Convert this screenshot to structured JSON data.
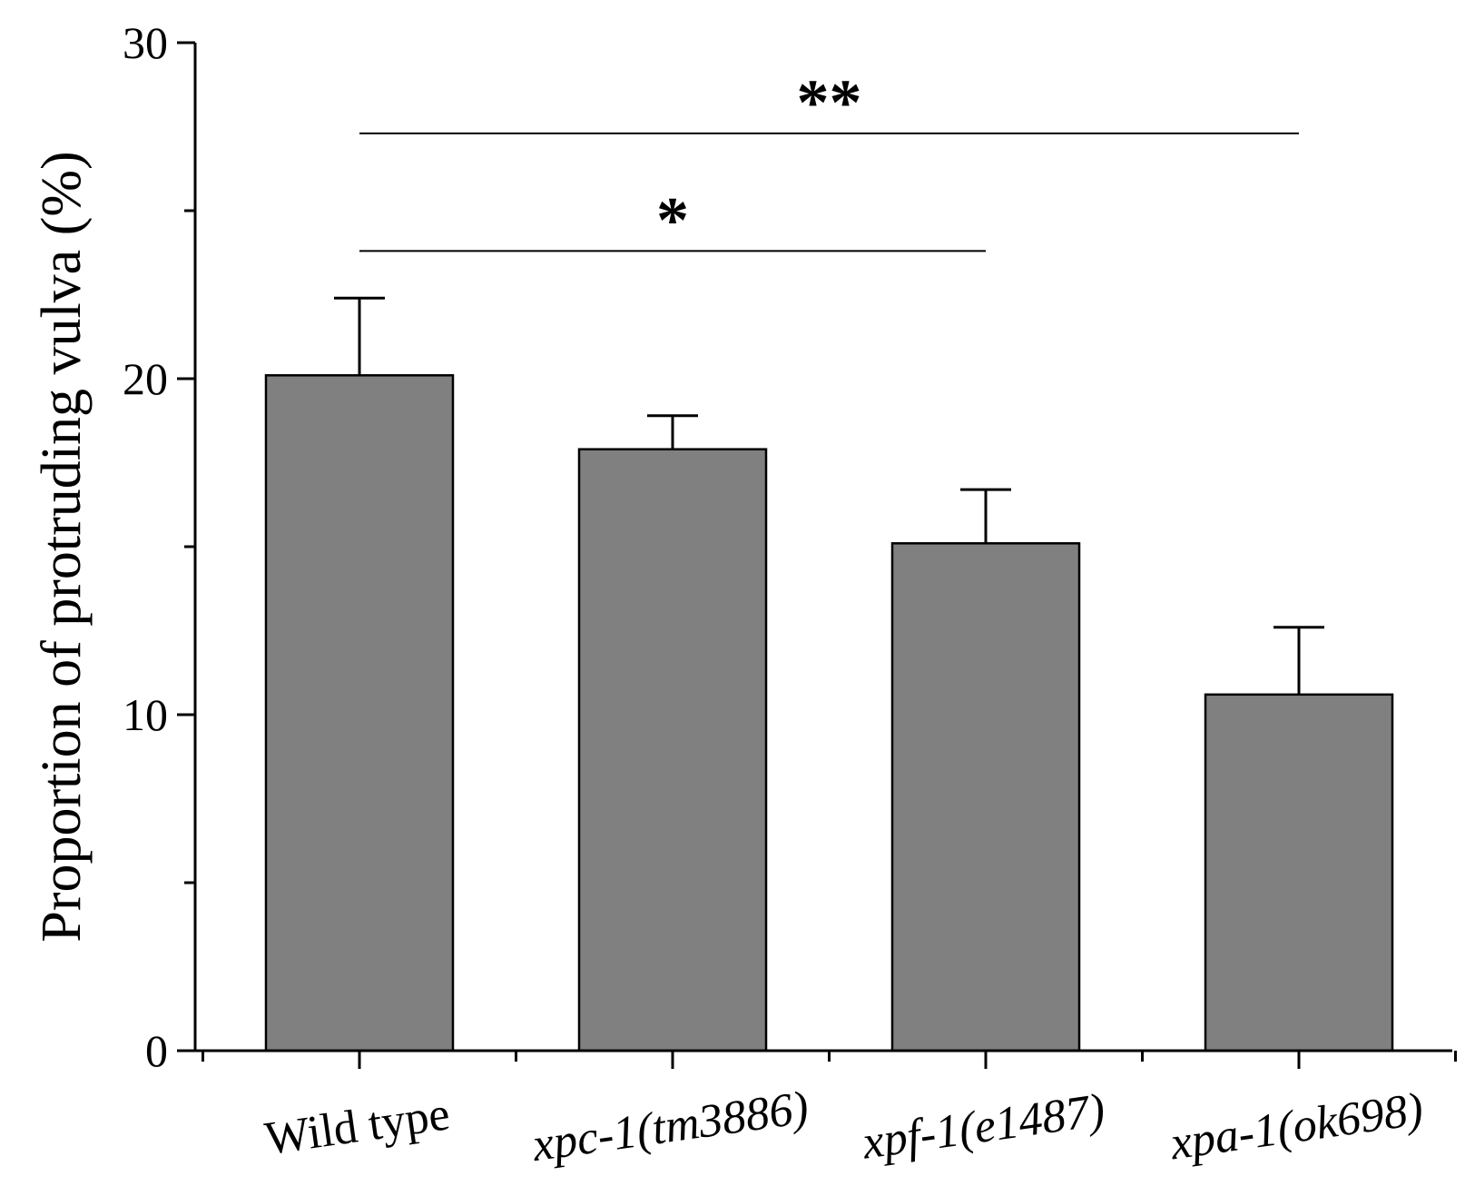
{
  "chart_data": {
    "type": "bar",
    "title": "",
    "xlabel": "",
    "ylabel": "Proportion of protruding vulva (%)",
    "ylim": [
      0,
      30
    ],
    "yticks": [
      0,
      10,
      20,
      30
    ],
    "yminor_ticks": [
      5,
      15,
      25
    ],
    "categories": [
      "Wild type",
      "xpc-1(tm3886)",
      "xpf-1(e1487)",
      "xpa-1(ok698)"
    ],
    "category_italic": [
      false,
      true,
      true,
      true
    ],
    "values": [
      20.1,
      17.9,
      15.1,
      10.6
    ],
    "errors": [
      2.3,
      1.0,
      1.6,
      2.0
    ],
    "bar_color": "#808080",
    "significance": [
      {
        "from": "Wild type",
        "to": "xpf-1(e1487)",
        "y": 23.8,
        "label": "*"
      },
      {
        "from": "Wild type",
        "to": "xpa-1(ok698)",
        "y": 27.3,
        "label": "**"
      }
    ]
  }
}
